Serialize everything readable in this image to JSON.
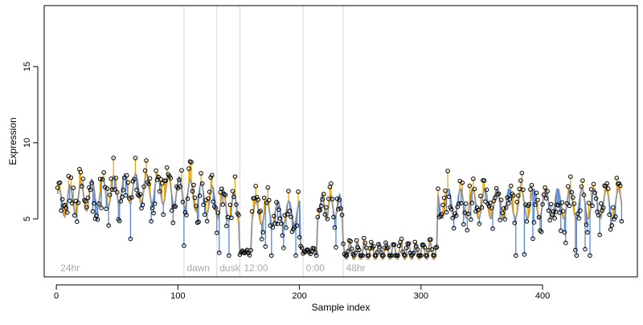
{
  "chart_data": {
    "type": "scatter",
    "title": "",
    "xlabel": "Sample index",
    "ylabel": "Expression",
    "xlim": [
      -10,
      478
    ],
    "ylim": [
      1.2,
      19.0
    ],
    "x_ticks": [
      0,
      100,
      200,
      300,
      400
    ],
    "y_ticks": [
      5,
      10,
      15
    ],
    "grid": false,
    "colors": {
      "above": "#e69f00",
      "below": "#4a7fd4",
      "fit": "#999999",
      "vline": "#d9d9d9",
      "point_stroke": "#000000"
    },
    "annotations": [
      {
        "x": 2,
        "text": "24hr"
      },
      {
        "x": 106,
        "text": "dawn"
      },
      {
        "x": 133,
        "text": "dusk"
      },
      {
        "x": 153,
        "text": "12:00"
      },
      {
        "x": 204,
        "text": "0:00"
      },
      {
        "x": 237,
        "text": "48hr"
      }
    ],
    "vlines": [
      105,
      132,
      151,
      203,
      236
    ],
    "segments": [
      {
        "x0": 1,
        "x1": 150,
        "base": 6.0,
        "amp": 1.0,
        "period": 9,
        "noise": 1.3,
        "shape": "rise-fall"
      },
      {
        "x0": 151,
        "x1": 160,
        "base": 2.85,
        "amp": 0.15,
        "period": 4,
        "noise": 0.1,
        "shape": "flat"
      },
      {
        "x0": 161,
        "x1": 200,
        "base": 5.4,
        "amp": 0.8,
        "period": 9,
        "noise": 1.0,
        "shape": "flat"
      },
      {
        "x0": 201,
        "x1": 214,
        "base": 2.9,
        "amp": 0.2,
        "period": 5,
        "noise": 0.15,
        "shape": "flat"
      },
      {
        "x0": 215,
        "x1": 235,
        "base": 5.8,
        "amp": 0.8,
        "period": 7,
        "noise": 0.8,
        "shape": "flat"
      },
      {
        "x0": 236,
        "x1": 313,
        "base": 2.9,
        "amp": 0.6,
        "period": 6,
        "noise": 0.35,
        "shape": "flat"
      },
      {
        "x0": 314,
        "x1": 465,
        "base": 6.0,
        "amp": 1.0,
        "period": 10,
        "noise": 1.2,
        "shape": "flat"
      }
    ]
  }
}
